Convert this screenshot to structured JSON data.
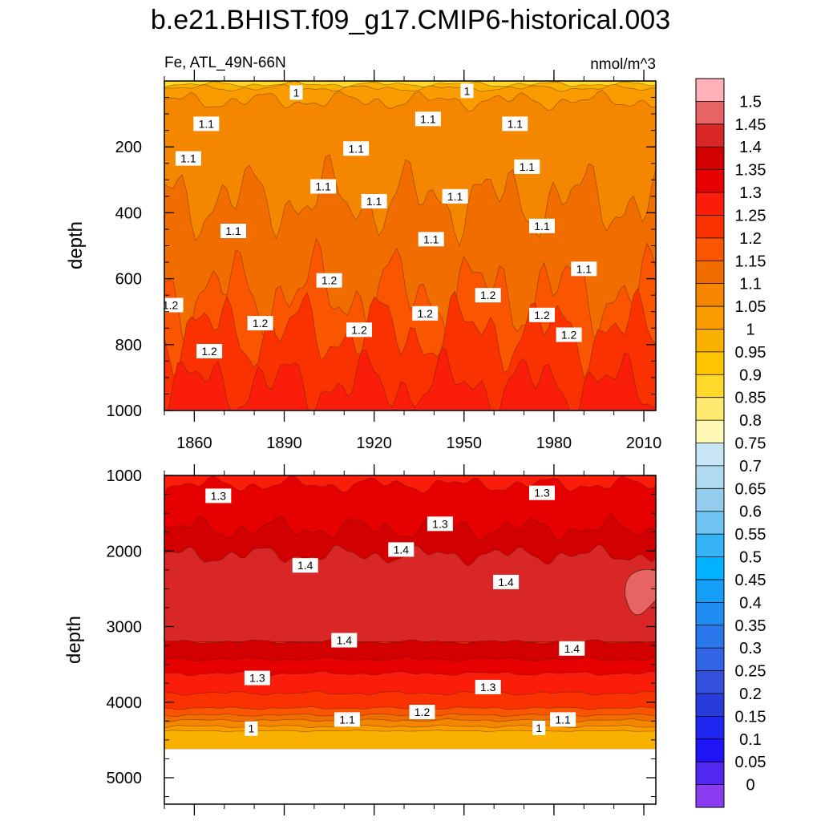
{
  "chart_data": {
    "type": "contour",
    "title": "b.e21.BHIST.f09_g17.CMIP6-historical.003",
    "variable_label": "Fe, ATL_49N-66N",
    "units": "nmol/m^3",
    "x": {
      "range": [
        1850,
        2014
      ],
      "tick_labels": [
        "1860",
        "1890",
        "1920",
        "1950",
        "1980",
        "2010"
      ],
      "tick_values": [
        1860,
        1890,
        1920,
        1950,
        1980,
        2010
      ]
    },
    "panels": [
      {
        "name": "upper",
        "ylabel": "depth",
        "ylim": [
          1000,
          0
        ],
        "y_tick_values": [
          200,
          400,
          600,
          800,
          1000
        ],
        "y_tick_labels": [
          "200",
          "400",
          "600",
          "800",
          "1000"
        ],
        "contour_labels": [
          {
            "text": "1",
            "year": 1894,
            "depth": 35
          },
          {
            "text": "1",
            "year": 1951,
            "depth": 30
          },
          {
            "text": "1.1",
            "year": 1864,
            "depth": 130
          },
          {
            "text": "1.1",
            "year": 1938,
            "depth": 115
          },
          {
            "text": "1.1",
            "year": 1967,
            "depth": 130
          },
          {
            "text": "1.1",
            "year": 1858,
            "depth": 235
          },
          {
            "text": "1.1",
            "year": 1914,
            "depth": 205
          },
          {
            "text": "1.1",
            "year": 1971,
            "depth": 260
          },
          {
            "text": "1.1",
            "year": 1903,
            "depth": 320
          },
          {
            "text": "1.1",
            "year": 1920,
            "depth": 365
          },
          {
            "text": "1.1",
            "year": 1947,
            "depth": 350
          },
          {
            "text": "1.1",
            "year": 1873,
            "depth": 455
          },
          {
            "text": "1.1",
            "year": 1939,
            "depth": 480
          },
          {
            "text": "1.1",
            "year": 1976,
            "depth": 440
          },
          {
            "text": "1.1",
            "year": 1990,
            "depth": 570
          },
          {
            "text": "1.2",
            "year": 1905,
            "depth": 605
          },
          {
            "text": "1.2",
            "year": 1852,
            "depth": 680
          },
          {
            "text": "1.2",
            "year": 1882,
            "depth": 735
          },
          {
            "text": "1.2",
            "year": 1937,
            "depth": 705
          },
          {
            "text": "1.2",
            "year": 1958,
            "depth": 650
          },
          {
            "text": "1.2",
            "year": 1976,
            "depth": 710
          },
          {
            "text": "1.2",
            "year": 1915,
            "depth": 755
          },
          {
            "text": "1.2",
            "year": 1985,
            "depth": 770
          },
          {
            "text": "1.2",
            "year": 1865,
            "depth": 820
          }
        ]
      },
      {
        "name": "lower",
        "ylabel": "depth",
        "ylim": [
          5350,
          1000
        ],
        "y_tick_values": [
          1000,
          2000,
          3000,
          4000,
          5000
        ],
        "y_tick_labels": [
          "1000",
          "2000",
          "3000",
          "4000",
          "5000"
        ],
        "seafloor_depth": 4620,
        "contour_labels": [
          {
            "text": "1.3",
            "year": 1868,
            "depth": 1270
          },
          {
            "text": "1.3",
            "year": 1942,
            "depth": 1640
          },
          {
            "text": "1.3",
            "year": 1976,
            "depth": 1230
          },
          {
            "text": "1.4",
            "year": 1929,
            "depth": 1980
          },
          {
            "text": "1.4",
            "year": 1897,
            "depth": 2190
          },
          {
            "text": "1.4",
            "year": 1964,
            "depth": 2410
          },
          {
            "text": "1.4",
            "year": 1910,
            "depth": 3180
          },
          {
            "text": "1.4",
            "year": 1986,
            "depth": 3290
          },
          {
            "text": "1.3",
            "year": 1881,
            "depth": 3680
          },
          {
            "text": "1.3",
            "year": 1958,
            "depth": 3800
          },
          {
            "text": "1.2",
            "year": 1936,
            "depth": 4130
          },
          {
            "text": "1.1",
            "year": 1911,
            "depth": 4230
          },
          {
            "text": "1.1",
            "year": 1983,
            "depth": 4230
          },
          {
            "text": "1",
            "year": 1879,
            "depth": 4350
          },
          {
            "text": "1",
            "year": 1975,
            "depth": 4340
          }
        ]
      }
    ],
    "colorbar": {
      "levels": [
        "1.5",
        "1.45",
        "1.4",
        "1.35",
        "1.3",
        "1.25",
        "1.2",
        "1.15",
        "1.1",
        "1.05",
        "1",
        "0.95",
        "0.9",
        "0.85",
        "0.8",
        "0.75",
        "0.7",
        "0.65",
        "0.6",
        "0.55",
        "0.5",
        "0.45",
        "0.4",
        "0.35",
        "0.3",
        "0.25",
        "0.2",
        "0.15",
        "0.1",
        "0.05",
        "0"
      ],
      "colors": [
        "#ffb0b8",
        "#e86464",
        "#d92626",
        "#d20000",
        "#e60000",
        "#fa1e0a",
        "#fa3200",
        "#fa5500",
        "#f26d00",
        "#f58700",
        "#fa9b00",
        "#fab000",
        "#ffc500",
        "#ffd82a",
        "#ffea70",
        "#fff8b4",
        "#c8e6f5",
        "#afdaf0",
        "#93ccec",
        "#6ec3f0",
        "#37b4f5",
        "#00b2ff",
        "#149ef5",
        "#1e8cf0",
        "#2a78eb",
        "#3264e6",
        "#3250dc",
        "#283cdc",
        "#1e28f0",
        "#1e14f5",
        "#5028f0",
        "#8c3cf0"
      ]
    },
    "fill_colors": {
      "surface_yellow": "#ffd82a",
      "orange_095": "#fab000",
      "orange_100": "#fa9b00",
      "orange_105": "#f58700",
      "orange_110": "#f26d00",
      "orange_115": "#fa5500",
      "red_120": "#fa3200",
      "red_125": "#fa1e0a",
      "red_130": "#e60000",
      "red_135": "#d20000",
      "red_140": "#d92626",
      "pink_145": "#e86464"
    }
  }
}
